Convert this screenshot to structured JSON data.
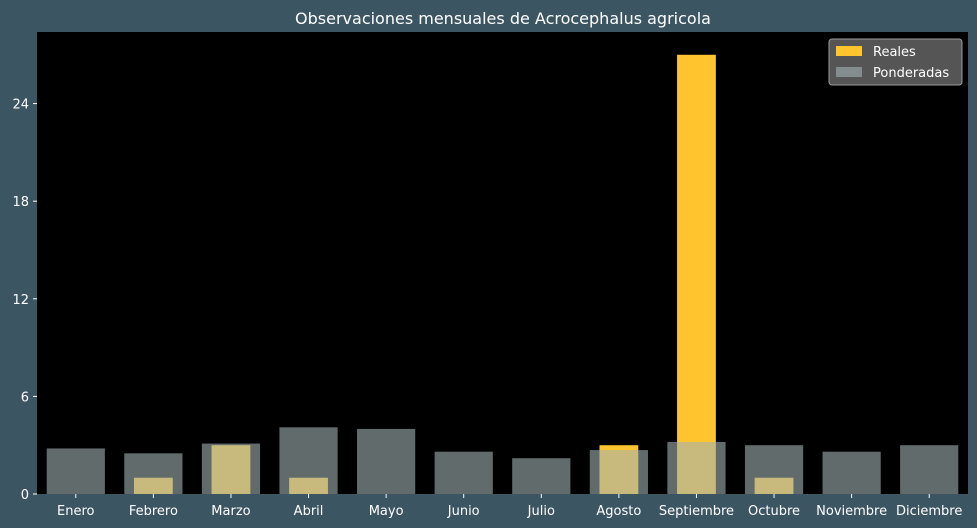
{
  "chart_data": {
    "type": "bar",
    "title": "Observaciones mensuales de Acrocephalus agricola",
    "xlabel": "",
    "ylabel": "",
    "categories": [
      "Enero",
      "Febrero",
      "Marzo",
      "Abril",
      "Mayo",
      "Junio",
      "Julio",
      "Agosto",
      "Septiembre",
      "Octubre",
      "Noviembre",
      "Diciembre"
    ],
    "series": [
      {
        "name": "Reales",
        "color": "#ffc42e",
        "values": [
          0,
          1,
          3,
          1,
          0,
          0,
          0,
          3,
          27,
          1,
          0,
          0
        ]
      },
      {
        "name": "Ponderadas",
        "color": "#a3b3b3",
        "values": [
          2.8,
          2.5,
          3.1,
          4.1,
          4.0,
          2.6,
          2.2,
          2.7,
          3.2,
          3.0,
          2.6,
          3.0
        ]
      }
    ],
    "yticks": [
      0,
      6,
      12,
      18,
      24
    ],
    "ylim": [
      0,
      28.4
    ],
    "grid": false,
    "legend": "top-right",
    "colors": {
      "background": "#3c5562",
      "plot_area": "#000000"
    }
  }
}
